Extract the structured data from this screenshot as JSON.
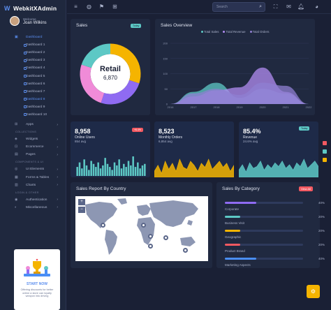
{
  "brand": {
    "name": "WebkitXAdmin",
    "logo": "W"
  },
  "user": {
    "welcome": "Welcome",
    "name": "Joan Wilkins"
  },
  "nav": {
    "dashboard": "Dashboard",
    "subitems": [
      "Dashboard 1",
      "Dashboard 2",
      "Dashboard 3",
      "Dashboard 4",
      "Dashboard 5",
      "Dashboard 6",
      "Dashboard 7",
      "Dashboard 8",
      "Dashboard 9",
      "Dashboard 10"
    ],
    "active_index": 7,
    "apps": "Apps",
    "section_collections": "COLLECTIONS",
    "widgets": "Widgets",
    "ecommerce": "Ecommerce",
    "pages": "Pages",
    "section_components": "COMPONENTS & UI",
    "ui_elements": "UI Elements",
    "forms_tables": "Forms & Tables",
    "charts": "Charts",
    "section_login": "LOGIN & OTHER",
    "authentication": "Authentication",
    "miscellaneous": "Miscellaneous"
  },
  "promo": {
    "title": "START NOW",
    "text": "Offering discounts for better online a store can loyalty weapon into driving"
  },
  "topbar": {
    "search_placeholder": "Search"
  },
  "sales": {
    "title": "Sales",
    "tag": "Today",
    "center_title": "Retail",
    "center_value": "6,870"
  },
  "overview": {
    "title": "Sales Overview",
    "legend": [
      "Total Sales",
      "Total Revenue",
      "Total Orders"
    ],
    "legend_colors": [
      "#5dc8c5",
      "#b18cf2",
      "#8f7fd1"
    ]
  },
  "kpis": [
    {
      "value": "8,958",
      "label": "Online Users",
      "sub": "854 avg",
      "badge": "+6.4%"
    },
    {
      "value": "8,523",
      "label": "Monthly Orders",
      "sub": "6,854 avg"
    },
    {
      "value": "85.4%",
      "label": "Revenue",
      "sub": "24.6% avg",
      "badge": "Today"
    }
  ],
  "map": {
    "title": "Sales Report By Country",
    "zoom_in": "+",
    "zoom_out": "−"
  },
  "categories": {
    "title": "Sales By Category",
    "tag": "View All",
    "items": [
      {
        "name": "Corporate",
        "pct": "40%",
        "value": 0.4,
        "color": "#8f6bf2"
      },
      {
        "name": "Business Visit",
        "pct": "20%",
        "value": 0.2,
        "color": "#5dc8c5"
      },
      {
        "name": "Geographic",
        "pct": "20%",
        "value": 0.2,
        "color": "#f5b400"
      },
      {
        "name": "Product Brand",
        "pct": "20%",
        "value": 0.2,
        "color": "#f25961"
      },
      {
        "name": "Marketing Aspects",
        "pct": "40%",
        "value": 0.4,
        "color": "#4a8ef5"
      }
    ]
  },
  "chart_data": [
    {
      "type": "pie",
      "title": "Sales",
      "values": [
        30,
        25,
        25,
        20
      ],
      "colors": [
        "#f5b400",
        "#8f6bf2",
        "#f08bd8",
        "#5dc8c5"
      ]
    },
    {
      "type": "area",
      "title": "Sales Overview",
      "x": [
        2016,
        2017,
        2018,
        2019,
        2020,
        2021,
        2022
      ],
      "xlabels": [
        "2016",
        "2017",
        "2018",
        "2019",
        "2020",
        "2021",
        "2022"
      ],
      "yticks": [
        0,
        50,
        100,
        150,
        200
      ],
      "ylim": [
        0,
        200
      ],
      "series": [
        {
          "name": "Total Sales",
          "values": [
            0,
            40,
            70,
            20,
            50,
            35,
            0
          ]
        },
        {
          "name": "Total Revenue",
          "values": [
            0,
            25,
            45,
            55,
            120,
            40,
            0
          ]
        },
        {
          "name": "Total Orders",
          "values": [
            0,
            35,
            50,
            30,
            70,
            60,
            0
          ]
        }
      ]
    },
    {
      "type": "bar",
      "title": "Online Users",
      "values": [
        6,
        9,
        5,
        11,
        7,
        4,
        10,
        8,
        6,
        9,
        5,
        7,
        12,
        8,
        6,
        4,
        9,
        7,
        11,
        5,
        8,
        6,
        10,
        7,
        13,
        6,
        9,
        5,
        7,
        8
      ],
      "color": "#5dc8c5"
    },
    {
      "type": "area",
      "title": "Monthly Orders",
      "values": [
        3,
        6,
        2,
        8,
        4,
        7,
        3,
        9,
        5,
        4,
        8,
        6,
        3,
        7,
        5,
        9,
        4,
        6,
        8,
        5,
        7,
        3,
        6
      ],
      "color": "#f5b400"
    },
    {
      "type": "area",
      "title": "Revenue",
      "values": [
        4,
        7,
        3,
        8,
        5,
        6,
        9,
        4,
        7,
        5,
        8,
        6,
        9,
        5,
        7,
        4,
        8,
        6,
        10,
        5,
        7,
        9,
        6
      ],
      "color": "#5dc8c5"
    }
  ]
}
